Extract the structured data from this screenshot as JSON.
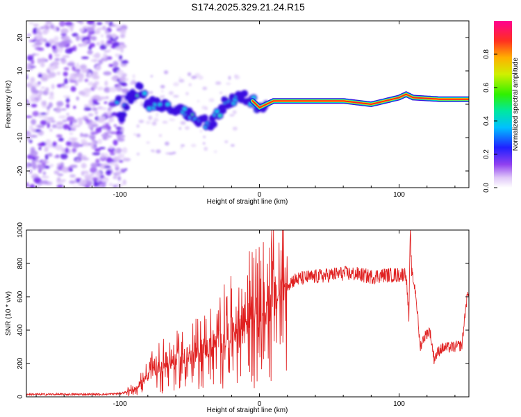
{
  "title": "S174.2025.329.21.24.R15",
  "chart_data": [
    {
      "type": "heatmap",
      "xlabel": "Height of straight line (km)",
      "ylabel": "Frequency (Hz)",
      "xlim": [
        -167,
        150
      ],
      "ylim": [
        -25,
        25
      ],
      "xticks": [
        -100,
        0,
        100
      ],
      "yticks": [
        -20,
        -10,
        0,
        10,
        20
      ],
      "colorbar": {
        "label": "Normalized spectral amplitude",
        "range": [
          0,
          1
        ],
        "ticks": [
          "0.0",
          "0.2",
          "0.4",
          "0.6",
          "0.8"
        ],
        "colors": [
          "#ffffff",
          "#c9a8f5",
          "#7a2cf0",
          "#1f2bff",
          "#00c8ff",
          "#00e890",
          "#40f000",
          "#d8f000",
          "#ffb000",
          "#ff3020",
          "#ff0080"
        ]
      },
      "ridge": {
        "x": [
          -100,
          -95,
          -90,
          -85,
          -80,
          -75,
          -70,
          -65,
          -60,
          -55,
          -50,
          -45,
          -40,
          -35,
          -30,
          -25,
          -20,
          -15,
          -10,
          -5,
          0,
          5,
          10,
          20,
          40,
          60,
          80,
          90,
          100,
          105,
          110,
          130,
          150
        ],
        "freq": [
          -5,
          1,
          3,
          5,
          0,
          0,
          -1,
          0,
          -2,
          -1,
          -3,
          -5,
          -5,
          -6,
          -3,
          0,
          1,
          2,
          2,
          1,
          -1,
          0,
          1,
          1,
          1,
          1,
          0,
          1,
          2,
          3,
          2,
          1.5,
          1.5
        ]
      }
    },
    {
      "type": "line",
      "xlabel": "Height of straight line (km)",
      "ylabel": "SNR (10 * v/v)",
      "xlim": [
        -167,
        150
      ],
      "ylim": [
        0,
        1000
      ],
      "xticks": [
        -100,
        0,
        100
      ],
      "yticks": [
        0,
        200,
        400,
        600,
        800,
        1000
      ],
      "color": "#e02020",
      "series": [
        {
          "name": "SNR",
          "x": [
            -167,
            -130,
            -110,
            -100,
            -95,
            -90,
            -85,
            -80,
            -75,
            -70,
            -65,
            -60,
            -55,
            -50,
            -45,
            -40,
            -35,
            -30,
            -25,
            -20,
            -15,
            -10,
            -5,
            0,
            5,
            8,
            10,
            12,
            15,
            20,
            25,
            30,
            40,
            50,
            60,
            70,
            80,
            90,
            100,
            105,
            107,
            108,
            109,
            112,
            115,
            118,
            122,
            125,
            128,
            130,
            140,
            145,
            148,
            150
          ],
          "y": [
            15,
            15,
            15,
            20,
            30,
            45,
            80,
            120,
            160,
            190,
            200,
            210,
            220,
            230,
            250,
            280,
            300,
            330,
            360,
            390,
            430,
            460,
            480,
            490,
            520,
            560,
            580,
            600,
            640,
            680,
            700,
            710,
            720,
            730,
            740,
            735,
            720,
            730,
            730,
            740,
            470,
            1000,
            750,
            620,
            300,
            360,
            400,
            230,
            270,
            290,
            300,
            310,
            560,
            640
          ]
        }
      ]
    }
  ]
}
